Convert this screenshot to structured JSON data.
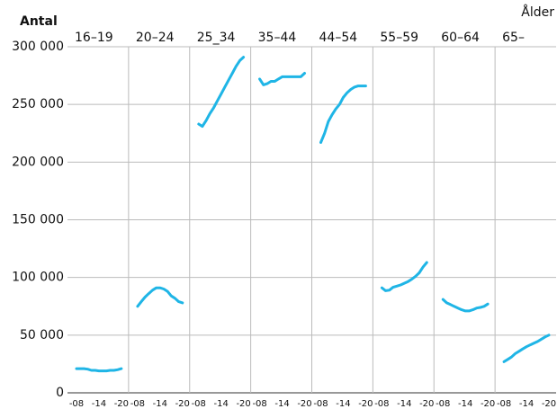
{
  "chart_data": {
    "type": "line",
    "y_label": "Antal",
    "x_label": "Ålder",
    "x": [
      "-08",
      null,
      null,
      null,
      null,
      null,
      "-14",
      null,
      null,
      null,
      null,
      null,
      "-20"
    ],
    "color": "#1fb5e6",
    "grid": true,
    "ylim": [
      0,
      300000
    ],
    "yticks": [
      0,
      {
        "value": 50000,
        "label": "50 000"
      },
      {
        "value": 100000,
        "label": "100 000"
      },
      {
        "value": 150000,
        "label": "150 000"
      },
      {
        "value": 200000,
        "label": "200 000"
      },
      {
        "value": 250000,
        "label": "250 000"
      },
      {
        "value": 300000,
        "label": "300 000"
      }
    ],
    "series": [
      {
        "name": "16–19",
        "values": [
          21000,
          21000,
          21000,
          20500,
          19500,
          19500,
          19000,
          19000,
          19000,
          19500,
          19500,
          20000,
          21000
        ]
      },
      {
        "name": "20–24",
        "values": [
          75000,
          79000,
          83000,
          86000,
          89000,
          91000,
          91000,
          90000,
          88000,
          84000,
          82000,
          79000,
          78000
        ]
      },
      {
        "name": "25_34",
        "values": [
          233000,
          231000,
          236000,
          242000,
          247000,
          253000,
          259000,
          265000,
          271000,
          277000,
          283000,
          288000,
          291000
        ]
      },
      {
        "name": "35–44",
        "values": [
          272000,
          267000,
          268000,
          270000,
          270000,
          272000,
          274000,
          274000,
          274000,
          274000,
          274000,
          274000,
          277000
        ]
      },
      {
        "name": "44–54",
        "values": [
          217000,
          225000,
          235000,
          241000,
          246000,
          250000,
          256000,
          260000,
          263000,
          265000,
          266000,
          266000,
          266000
        ]
      },
      {
        "name": "55–59",
        "values": [
          91000,
          88500,
          89000,
          91500,
          92500,
          93500,
          95000,
          96500,
          98500,
          101000,
          104000,
          109000,
          113000
        ]
      },
      {
        "name": "60–64",
        "values": [
          81000,
          78000,
          76500,
          75000,
          73500,
          72000,
          71000,
          71000,
          72000,
          73500,
          74000,
          75000,
          77000
        ]
      },
      {
        "name": "65–",
        "values": [
          27000,
          29000,
          31000,
          34000,
          36000,
          38000,
          40000,
          41500,
          43000,
          44500,
          46500,
          48500,
          50000
        ]
      }
    ]
  }
}
